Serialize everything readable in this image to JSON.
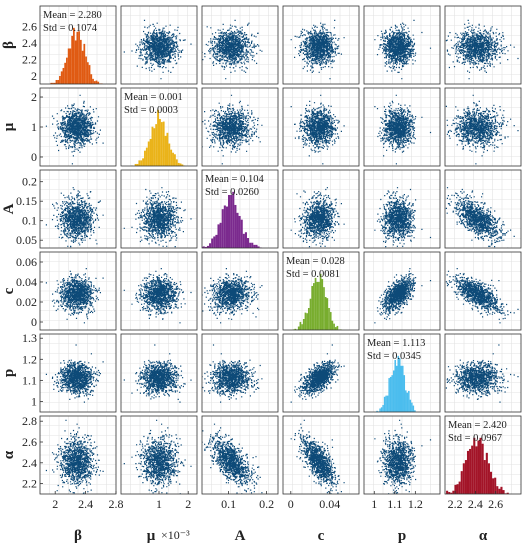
{
  "chart_data": {
    "type": "scatter-matrix",
    "title": "",
    "variables": [
      {
        "key": "beta",
        "label": "β",
        "range": [
          1.8,
          2.8
        ],
        "ticks": [
          2,
          2.4,
          2.8
        ],
        "tick_labels": [
          "2",
          "2.4",
          "2.8"
        ],
        "row_ticks": [
          2,
          2.2,
          2.4,
          2.6
        ],
        "row_tick_labels": [
          "2",
          "2.2",
          "2.4",
          "2.6"
        ],
        "mean": 2.28,
        "std": 0.1074,
        "mean_text": "Mean = 2.280",
        "std_text": "Std = 0.1074",
        "hist_color": "#e05a12",
        "axis_suffix": ""
      },
      {
        "key": "mu",
        "label": "μ",
        "range": [
          -0.0003,
          0.0023
        ],
        "ticks": [
          0.001,
          0.002
        ],
        "tick_labels": [
          "1",
          "2"
        ],
        "row_ticks": [
          0,
          0.001,
          0.002
        ],
        "row_tick_labels": [
          "0",
          "1",
          "2"
        ],
        "mean": 0.001,
        "std": 0.0003,
        "mean_text": "Mean = 0.001",
        "std_text": "Std = 0.0003",
        "hist_color": "#eab319",
        "axis_suffix": "×10⁻³"
      },
      {
        "key": "A",
        "label": "A",
        "range": [
          0.03,
          0.23
        ],
        "ticks": [
          0.1,
          0.2
        ],
        "tick_labels": [
          "0.1",
          "0.2"
        ],
        "row_ticks": [
          0.05,
          0.1,
          0.15,
          0.2
        ],
        "row_tick_labels": [
          "0.05",
          "0.1",
          "0.15",
          "0.2"
        ],
        "mean": 0.104,
        "std": 0.026,
        "mean_text": "Mean = 0.104",
        "std_text": "Std = 0.0260",
        "hist_color": "#7b2a8e",
        "axis_suffix": ""
      },
      {
        "key": "c",
        "label": "c",
        "range": [
          -0.008,
          0.07
        ],
        "ticks": [
          0,
          0.04
        ],
        "tick_labels": [
          "0",
          "0.04"
        ],
        "row_ticks": [
          0,
          0.02,
          0.04,
          0.06
        ],
        "row_tick_labels": [
          "0",
          "0.02",
          "0.04",
          "0.06"
        ],
        "mean": 0.028,
        "std": 0.0081,
        "mean_text": "Mean = 0.028",
        "std_text": "Std = 0.0081",
        "hist_color": "#78ad2e",
        "axis_suffix": ""
      },
      {
        "key": "p",
        "label": "p",
        "range": [
          0.95,
          1.32
        ],
        "ticks": [
          1,
          1.1,
          1.2
        ],
        "tick_labels": [
          "1",
          "1.1",
          "1.2"
        ],
        "row_ticks": [
          1,
          1.1,
          1.2,
          1.3
        ],
        "row_tick_labels": [
          "1",
          "1.1",
          "1.2",
          "1.3"
        ],
        "mean": 1.113,
        "std": 0.0345,
        "mean_text": "Mean = 1.113",
        "std_text": "Std = 0.0345",
        "hist_color": "#4bbdee",
        "axis_suffix": ""
      },
      {
        "key": "alpha",
        "label": "α",
        "range": [
          2.1,
          2.85
        ],
        "ticks": [
          2.2,
          2.4,
          2.6
        ],
        "tick_labels": [
          "2.2",
          "2.4",
          "2.6"
        ],
        "row_ticks": [
          2.2,
          2.4,
          2.6,
          2.8
        ],
        "row_tick_labels": [
          "2.2",
          "2.4",
          "2.6",
          "2.8"
        ],
        "mean": 2.42,
        "std": 0.0967,
        "mean_text": "Mean = 2.420",
        "std_text": "Std = 0.0967",
        "hist_color": "#a31428",
        "axis_suffix": ""
      }
    ],
    "correlations": [
      [
        1,
        0,
        0,
        0,
        0,
        0
      ],
      [
        0,
        1,
        0,
        0,
        0,
        0
      ],
      [
        0,
        0,
        1,
        0.1,
        0,
        -0.7
      ],
      [
        0,
        0,
        0.1,
        1,
        0.6,
        -0.75
      ],
      [
        0,
        0,
        0,
        0.6,
        1,
        0
      ],
      [
        0,
        0,
        -0.7,
        -0.75,
        0,
        1
      ]
    ],
    "scatter_color": "#0d4a78",
    "grid": true,
    "legend": "none"
  }
}
